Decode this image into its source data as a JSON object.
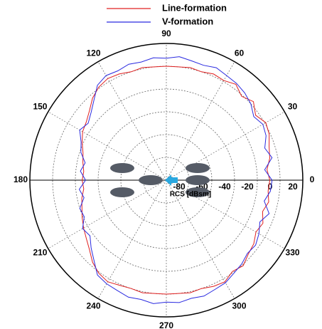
{
  "chart_data": {
    "type": "polar",
    "r_label": "RCS [dBsm]",
    "rlim": [
      -100,
      20
    ],
    "rticks": [
      -80,
      -60,
      -40,
      -20,
      0,
      20
    ],
    "thetaticks": [
      0,
      30,
      60,
      90,
      120,
      150,
      180,
      210,
      240,
      270,
      300,
      330
    ],
    "grid": true,
    "legend": "top",
    "theta": [
      0,
      6,
      12,
      18,
      24,
      30,
      36,
      42,
      48,
      54,
      60,
      66,
      72,
      78,
      84,
      90,
      96,
      102,
      108,
      114,
      120,
      126,
      132,
      138,
      144,
      150,
      156,
      162,
      168,
      174,
      180,
      186,
      192,
      198,
      204,
      210,
      216,
      222,
      228,
      234,
      240,
      246,
      252,
      258,
      264,
      270,
      276,
      282,
      288,
      294,
      300,
      306,
      312,
      318,
      324,
      330,
      336,
      342,
      348,
      354
    ],
    "series": [
      {
        "name": "Line-formation",
        "color": "#e02020",
        "values": [
          -9,
          -11,
          -7,
          -5,
          -1,
          1,
          -3,
          3,
          -1,
          4,
          1,
          2,
          0,
          1,
          0,
          0,
          0,
          1,
          0,
          2,
          3,
          1,
          -3,
          -9,
          -13,
          -15,
          -19,
          -23,
          -25,
          -27,
          -26,
          -27,
          -24,
          -22,
          -19,
          -16,
          -13,
          -9,
          -3,
          1,
          3,
          1,
          0,
          1,
          0,
          0,
          0,
          1,
          0,
          2,
          3,
          -1,
          1,
          -3,
          -5,
          -9,
          -7,
          -11,
          -8,
          -10
        ]
      },
      {
        "name": "V-formation",
        "color": "#2a2ae0",
        "values": [
          -7,
          -13,
          -5,
          -9,
          -4,
          -2,
          -5,
          0,
          3,
          5,
          6,
          8,
          6,
          7,
          9,
          7,
          8,
          6,
          7,
          5,
          6,
          3,
          -5,
          -11,
          -15,
          -12,
          -18,
          -21,
          -27,
          -24,
          -29,
          -23,
          -26,
          -20,
          -21,
          -15,
          -17,
          -11,
          -5,
          3,
          5,
          6,
          8,
          7,
          9,
          7,
          8,
          6,
          7,
          5,
          4,
          1,
          -1,
          -4,
          -3,
          -6,
          -10,
          -5,
          -12,
          -8
        ]
      }
    ]
  }
}
